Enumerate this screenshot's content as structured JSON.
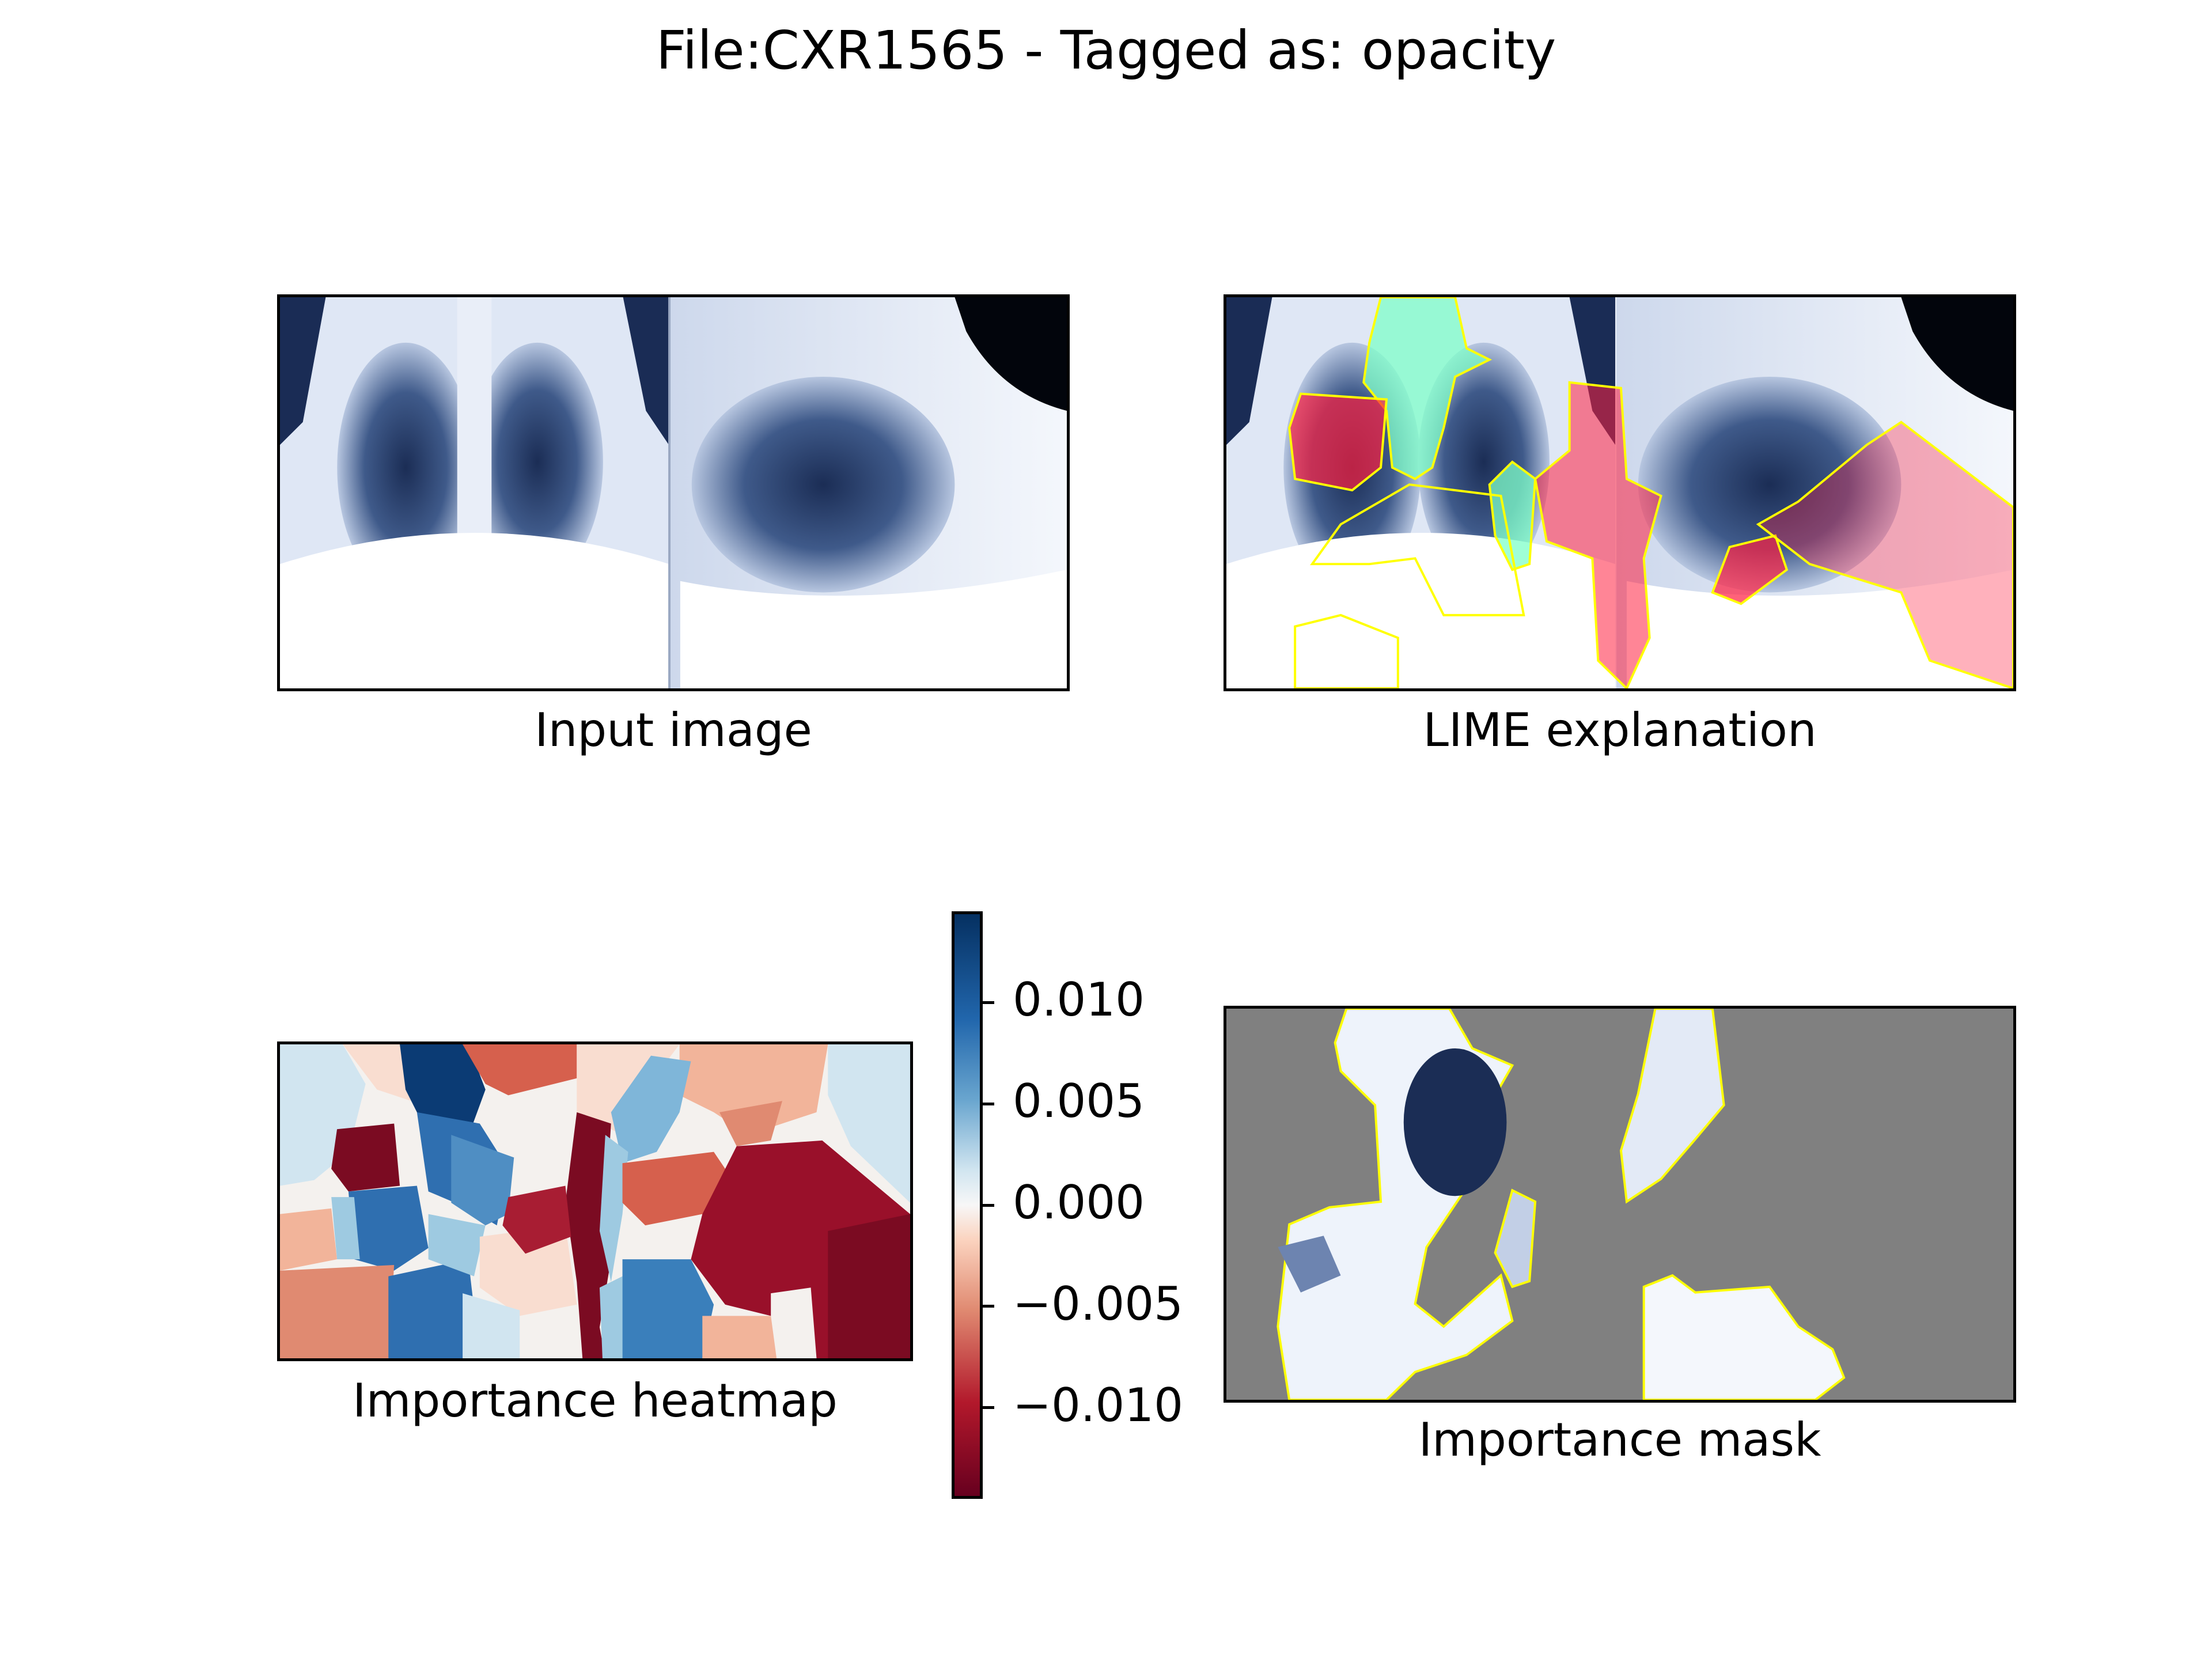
{
  "figure": {
    "title": "File:CXR1565 - Tagged as: opacity"
  },
  "panels": [
    {
      "caption": "Input image"
    },
    {
      "caption": "LIME explanation"
    },
    {
      "caption": "Importance heatmap"
    },
    {
      "caption": "Importance mask"
    }
  ],
  "chart_data": {
    "type": "heatmap",
    "title": "File:CXR1565 - Tagged as: opacity",
    "colorbar": {
      "colormap": "RdBu",
      "vmin": -0.0145,
      "vmax": 0.0145,
      "ticks": [
        0.01,
        0.005,
        0.0,
        -0.005,
        -0.01
      ],
      "tick_labels": [
        "0.010",
        "0.005",
        "0.000",
        "−0.005",
        "−0.010"
      ]
    },
    "colors": {
      "strong_positive": "#0b3b74",
      "positive": "#2f6fb0",
      "weak_positive": "#9ecae1",
      "neutral": "#f4f1ee",
      "weak_negative": "#f2b49a",
      "negative": "#d06a55",
      "strong_negative": "#7b0b22",
      "mask_background": "#808080",
      "lime_positive": "#7fffc8",
      "lime_negative": "#ff2040",
      "boundary": "#ffff00"
    }
  }
}
